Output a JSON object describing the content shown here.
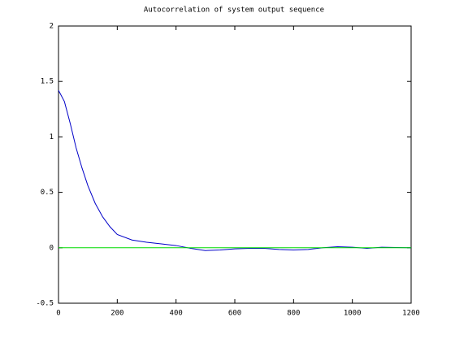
{
  "chart_data": {
    "type": "line",
    "title": "Autocorrelation of system output sequence",
    "series": [
      {
        "color": "#0000c8",
        "x": [
          0,
          20,
          40,
          60,
          80,
          100,
          125,
          150,
          175,
          200,
          250,
          300,
          350,
          400,
          450,
          500,
          550,
          600,
          650,
          700,
          750,
          800,
          850,
          900,
          950,
          1000,
          1050,
          1100,
          1150,
          1200
        ],
        "values": [
          1.42,
          1.32,
          1.12,
          0.9,
          0.72,
          0.56,
          0.4,
          0.28,
          0.19,
          0.12,
          0.07,
          0.05,
          0.035,
          0.02,
          -0.005,
          -0.025,
          -0.02,
          -0.01,
          -0.005,
          -0.005,
          -0.015,
          -0.02,
          -0.015,
          0,
          0.01,
          0.005,
          -0.005,
          0.005,
          0.002,
          0
        ]
      },
      {
        "color": "#00dc00",
        "x": [
          0,
          1200
        ],
        "values": [
          0,
          0
        ]
      }
    ],
    "xlim": [
      0,
      1200
    ],
    "xticks": [
      0,
      200,
      400,
      600,
      800,
      1000,
      1200
    ],
    "ylim": [
      -0.5,
      2
    ],
    "yticks": [
      -0.5,
      0,
      0.5,
      1,
      1.5,
      2
    ]
  }
}
